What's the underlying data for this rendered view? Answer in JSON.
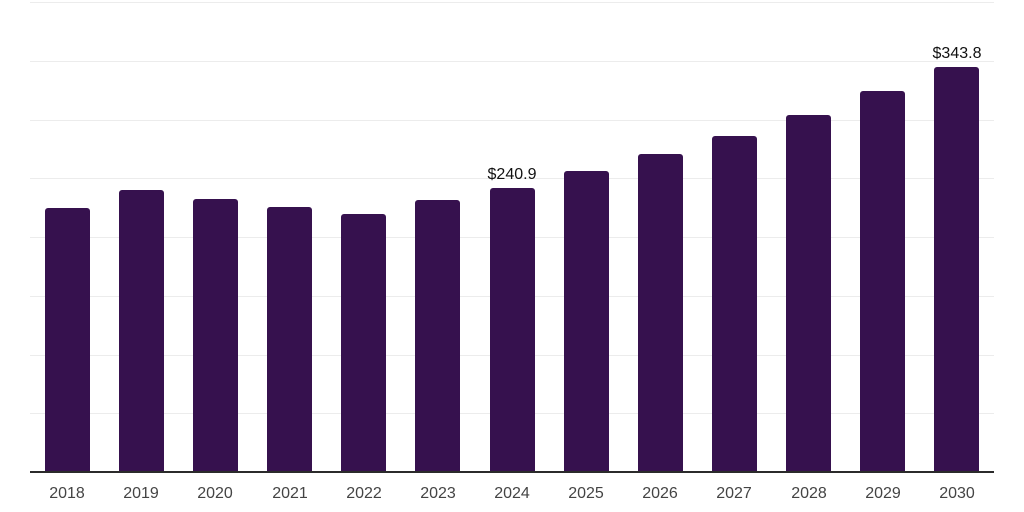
{
  "chart_data": {
    "type": "bar",
    "title": "",
    "xlabel": "",
    "ylabel": "",
    "categories": [
      "2018",
      "2019",
      "2020",
      "2021",
      "2022",
      "2023",
      "2024",
      "2025",
      "2026",
      "2027",
      "2028",
      "2029",
      "2030"
    ],
    "values": [
      223.6,
      238.9,
      231.3,
      224.5,
      218.5,
      230.4,
      240.9,
      255.1,
      269.6,
      284.9,
      302.7,
      323.1,
      343.8
    ],
    "data_labels": [
      "",
      "",
      "",
      "",
      "",
      "",
      "$240.9",
      "",
      "",
      "",
      "",
      "",
      "$343.8"
    ],
    "ylim": [
      0,
      400
    ],
    "grid_step": 50,
    "grid": "horizontal-only",
    "legend": "none",
    "colors": {
      "bar": "#36114E",
      "gridline": "#ececec",
      "axis_line": "#2b2b2b",
      "tick_label": "#444444",
      "data_label": "#111111",
      "background": "#ffffff"
    }
  }
}
